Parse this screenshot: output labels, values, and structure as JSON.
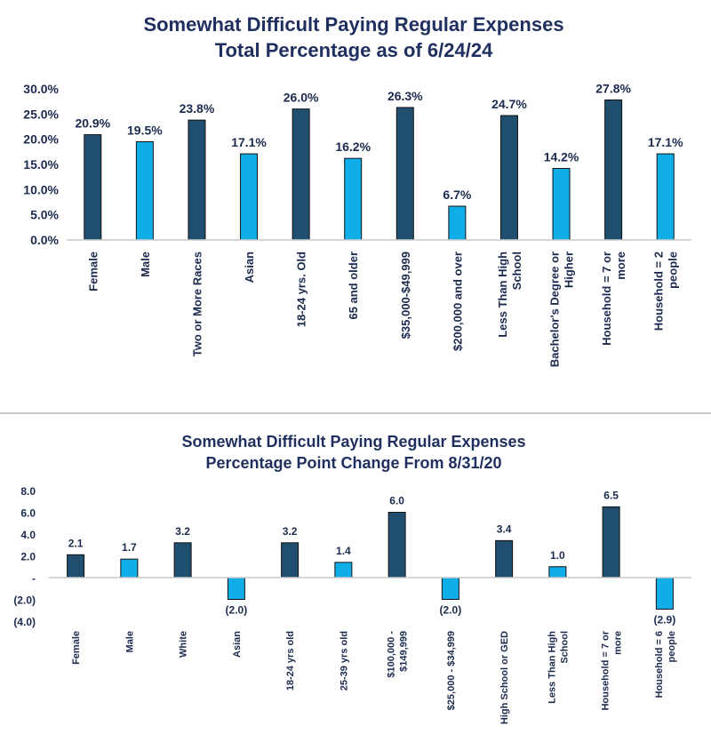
{
  "chart_data": [
    {
      "type": "bar",
      "title": "Somewhat Difficult Paying Regular Expenses",
      "subtitle": "Total Percentage as of 6/24/24",
      "categories": [
        [
          "Female"
        ],
        [
          "Male"
        ],
        [
          "Two or More Races"
        ],
        [
          "Asian"
        ],
        [
          "18-24 yrs. Old"
        ],
        [
          "65 and older"
        ],
        [
          "$35,000-$49,999"
        ],
        [
          "$200,000 and over"
        ],
        [
          "Less Than High",
          "School"
        ],
        [
          "Bachelor's Degree or",
          "Higher"
        ],
        [
          "Household = 7 or",
          "more"
        ],
        [
          "Household = 2",
          "people"
        ]
      ],
      "values": [
        20.9,
        19.5,
        23.8,
        17.1,
        26.0,
        16.2,
        26.3,
        6.7,
        24.7,
        14.2,
        27.8,
        17.1
      ],
      "value_labels": [
        "20.9%",
        "19.5%",
        "23.8%",
        "17.1%",
        "26.0%",
        "16.2%",
        "26.3%",
        "6.7%",
        "24.7%",
        "14.2%",
        "27.8%",
        "17.1%"
      ],
      "ylim": [
        0,
        30
      ],
      "yticks": [
        0,
        5,
        10,
        15,
        20,
        25,
        30
      ],
      "ytick_labels": [
        "0.0%",
        "5.0%",
        "10.0%",
        "15.0%",
        "20.0%",
        "25.0%",
        "30.0%"
      ],
      "xlabel": "",
      "ylabel": "",
      "grid": false,
      "colors": [
        "#1f4e6e",
        "#10aee8"
      ]
    },
    {
      "type": "bar",
      "title": "Somewhat Difficult Paying Regular Expenses",
      "subtitle": "Percentage Point Change From 8/31/20",
      "categories": [
        [
          "Female"
        ],
        [
          "Male"
        ],
        [
          "White"
        ],
        [
          "Asian"
        ],
        [
          "18-24 yrs old"
        ],
        [
          "25-39 yrs old"
        ],
        [
          "$100,000 -",
          "$149,999"
        ],
        [
          "$25,000 - $34,999"
        ],
        [
          "High School or GED"
        ],
        [
          "Less Than High",
          "School"
        ],
        [
          "Household = 7 or",
          "more"
        ],
        [
          "Household = 6",
          "people"
        ]
      ],
      "values": [
        2.1,
        1.7,
        3.2,
        -2.0,
        3.2,
        1.4,
        6.0,
        -2.0,
        3.4,
        1.0,
        6.5,
        -2.9
      ],
      "value_labels": [
        "2.1",
        "1.7",
        "3.2",
        "(2.0)",
        "3.2",
        "1.4",
        "6.0",
        "(2.0)",
        "3.4",
        "1.0",
        "6.5",
        "(2.9)"
      ],
      "ylim": [
        -4,
        8
      ],
      "yticks": [
        -4,
        -2,
        0,
        2,
        4,
        6,
        8
      ],
      "ytick_labels": [
        "(4.0)",
        "(2.0)",
        "-",
        "2.0",
        "4.0",
        "6.0",
        "8.0"
      ],
      "xlabel": "",
      "ylabel": "",
      "grid": false,
      "colors": [
        "#1f4e6e",
        "#10aee8"
      ]
    }
  ]
}
